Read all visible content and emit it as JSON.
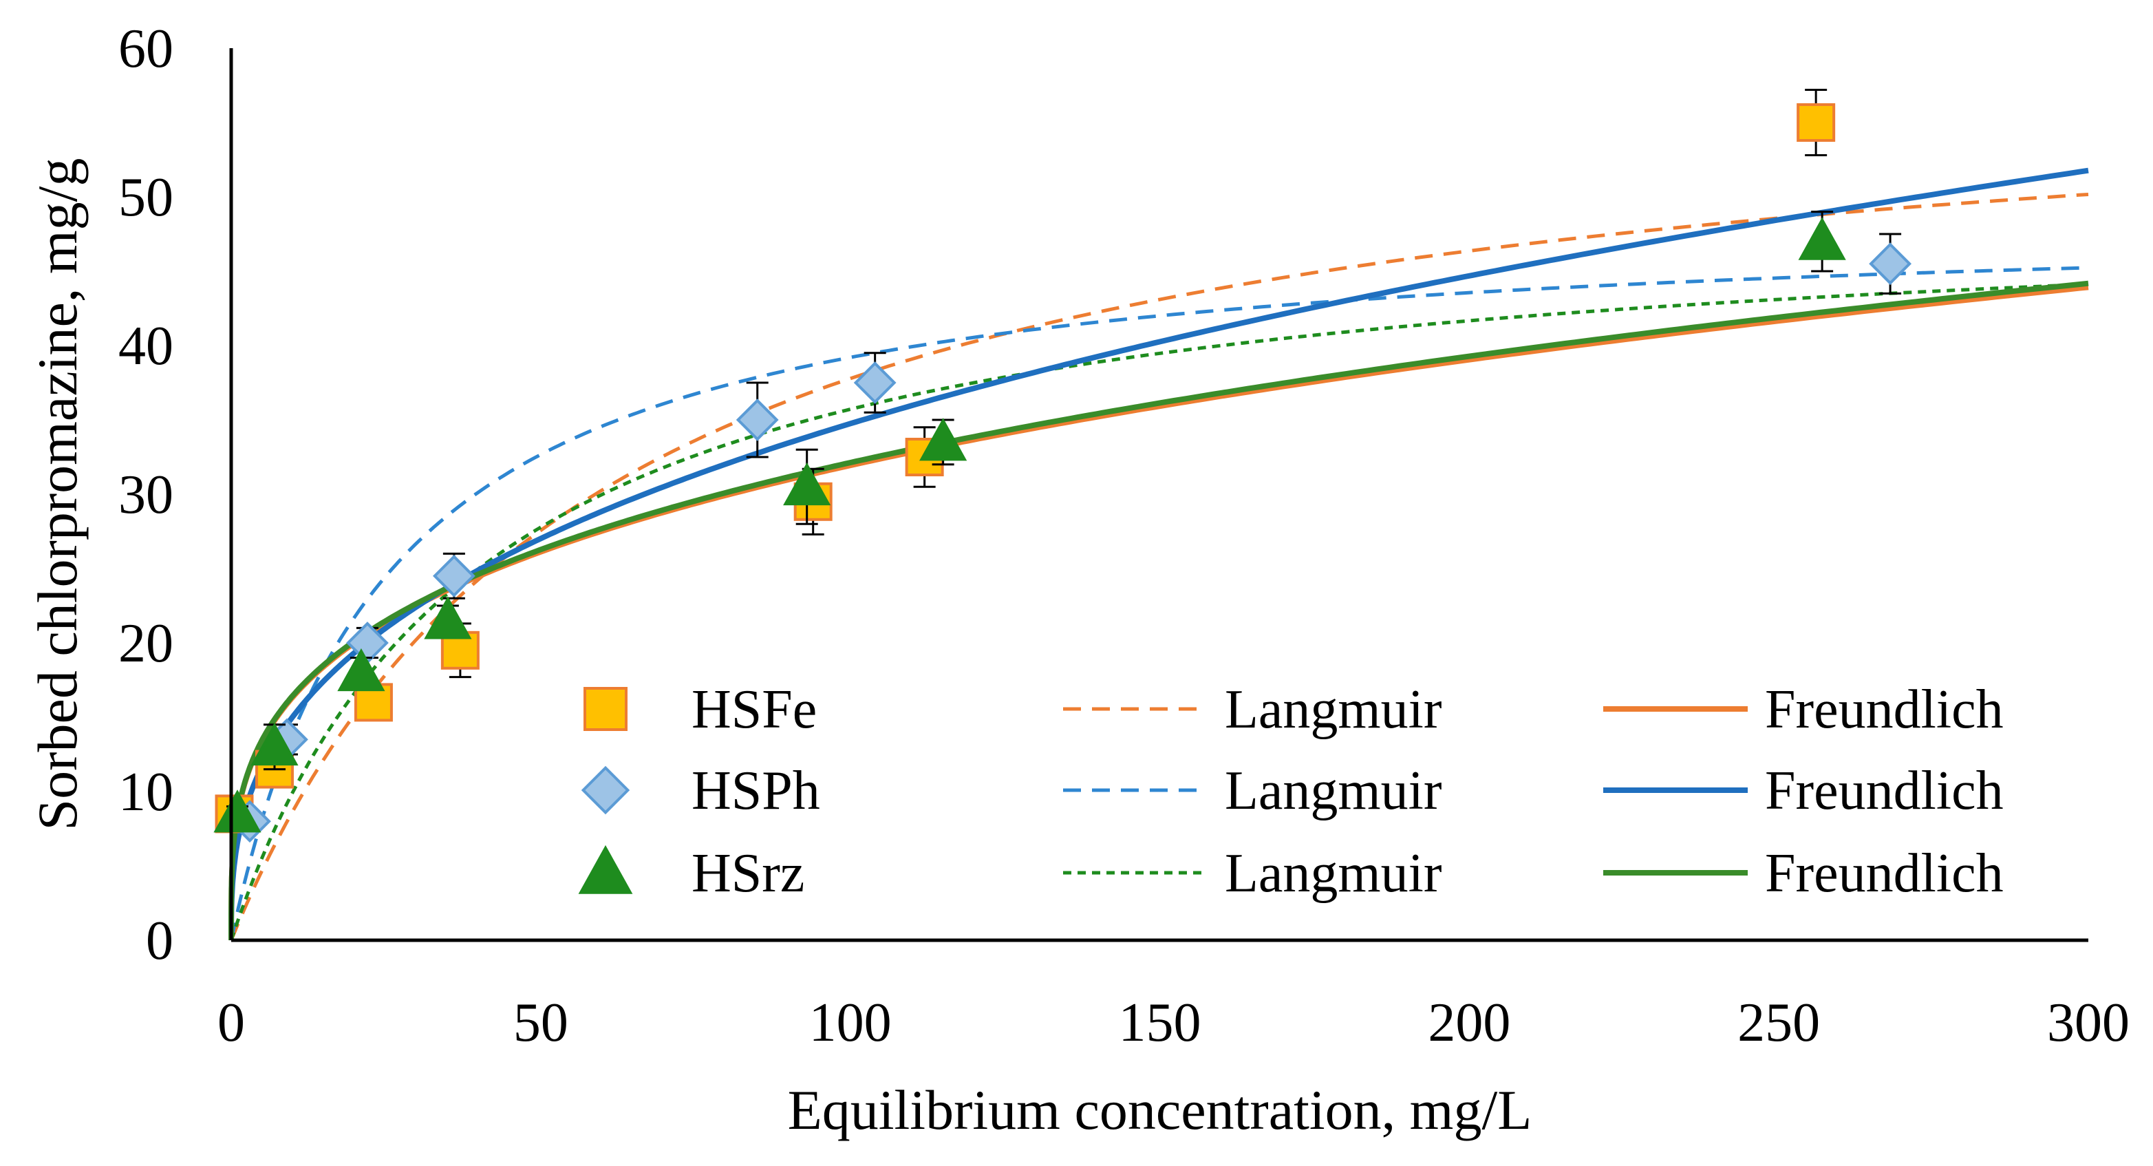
{
  "chart_data": {
    "type": "scatter",
    "title": "",
    "xlabel": "Equilibrium concentration, mg/L",
    "ylabel": "Sorbed chlorpromazine, mg/g",
    "xlim": [
      0,
      300
    ],
    "ylim": [
      0,
      60
    ],
    "x_ticks": [
      "0",
      "50",
      "100",
      "150",
      "200",
      "250",
      "300"
    ],
    "y_ticks": [
      "0",
      "10",
      "20",
      "30",
      "40",
      "50",
      "60"
    ],
    "grid": false,
    "legend_position": "bottom-center",
    "series": [
      {
        "name": "HSFe",
        "kind": "points",
        "marker": "square",
        "color": "#FFC000",
        "edge_color": "#ED7D31",
        "points": [
          {
            "x": 0.5,
            "y": 8.5,
            "err": 0.6
          },
          {
            "x": 7,
            "y": 11.5,
            "err": 1.0
          },
          {
            "x": 23,
            "y": 16.0,
            "err": 1.0
          },
          {
            "x": 37,
            "y": 19.5,
            "err": 1.8
          },
          {
            "x": 94,
            "y": 29.5,
            "err": 2.2
          },
          {
            "x": 112,
            "y": 32.5,
            "err": 2.0
          },
          {
            "x": 256,
            "y": 55.0,
            "err": 2.2
          }
        ]
      },
      {
        "name": "HSPh",
        "kind": "points",
        "marker": "diamond",
        "color": "#9DC3E6",
        "edge_color": "#5B9BD5",
        "points": [
          {
            "x": 3,
            "y": 8.0,
            "err": 0.5
          },
          {
            "x": 9,
            "y": 13.5,
            "err": 1.0
          },
          {
            "x": 22,
            "y": 20.0,
            "err": 1.0
          },
          {
            "x": 36,
            "y": 24.5,
            "err": 1.5
          },
          {
            "x": 85,
            "y": 35.0,
            "err": 2.5
          },
          {
            "x": 104,
            "y": 37.5,
            "err": 2.0
          },
          {
            "x": 268,
            "y": 45.5,
            "err": 2.0
          }
        ]
      },
      {
        "name": "HSrz",
        "kind": "points",
        "marker": "triangle",
        "color": "#1E8C1E",
        "edge_color": "#1E8C1E",
        "points": [
          {
            "x": 1,
            "y": 8.5,
            "err": 0.5
          },
          {
            "x": 7,
            "y": 13.0,
            "err": 1.5
          },
          {
            "x": 21,
            "y": 18.0,
            "err": 1.0
          },
          {
            "x": 35,
            "y": 21.5,
            "err": 1.0
          },
          {
            "x": 93,
            "y": 30.5,
            "err": 2.5
          },
          {
            "x": 115,
            "y": 33.5,
            "err": 1.5
          },
          {
            "x": 257,
            "y": 47.0,
            "err": 2.0
          }
        ]
      },
      {
        "name": "Langmuir",
        "kind": "curve",
        "model": "langmuir",
        "style": "dashed",
        "color": "#ED7D31",
        "params": {
          "qmax": 60,
          "KL": 0.017
        }
      },
      {
        "name": "Langmuir",
        "kind": "curve",
        "model": "langmuir",
        "style": "dashed",
        "color": "#2E86D1",
        "params": {
          "qmax": 49,
          "KL": 0.04
        }
      },
      {
        "name": "Langmuir",
        "kind": "curve",
        "model": "langmuir",
        "style": "dotted",
        "color": "#1E8C1E",
        "params": {
          "qmax": 50,
          "KL": 0.025
        }
      },
      {
        "name": "Freundlich",
        "kind": "curve",
        "model": "freundlich",
        "style": "solid",
        "color": "#ED7D31",
        "params": {
          "KF": 8.4,
          "n": 0.29
        }
      },
      {
        "name": "Freundlich",
        "kind": "curve",
        "model": "freundlich",
        "style": "solid",
        "color": "#1F6FBF",
        "params": {
          "KF": 6.53,
          "n": 0.363
        }
      },
      {
        "name": "Freundlich",
        "kind": "curve",
        "model": "freundlich",
        "style": "solid",
        "color": "#3A8C2A",
        "params": {
          "KF": 8.45,
          "n": 0.29
        }
      }
    ],
    "legend": [
      {
        "label": "HSFe",
        "type": "marker",
        "marker": "square",
        "color": "#FFC000",
        "edge_color": "#ED7D31"
      },
      {
        "label": "Langmuir",
        "type": "line",
        "style": "dashed",
        "color": "#ED7D31"
      },
      {
        "label": "Freundlich",
        "type": "line",
        "style": "solid",
        "color": "#ED7D31"
      },
      {
        "label": "HSPh",
        "type": "marker",
        "marker": "diamond",
        "color": "#9DC3E6",
        "edge_color": "#5B9BD5"
      },
      {
        "label": "Langmuir",
        "type": "line",
        "style": "dashed",
        "color": "#2E86D1"
      },
      {
        "label": "Freundlich",
        "type": "line",
        "style": "solid",
        "color": "#1F6FBF"
      },
      {
        "label": "HSrz",
        "type": "marker",
        "marker": "triangle",
        "color": "#1E8C1E",
        "edge_color": "#1E8C1E"
      },
      {
        "label": "Langmuir",
        "type": "line",
        "style": "dotted",
        "color": "#1E8C1E"
      },
      {
        "label": "Freundlich",
        "type": "line",
        "style": "solid",
        "color": "#3A8C2A"
      }
    ]
  }
}
